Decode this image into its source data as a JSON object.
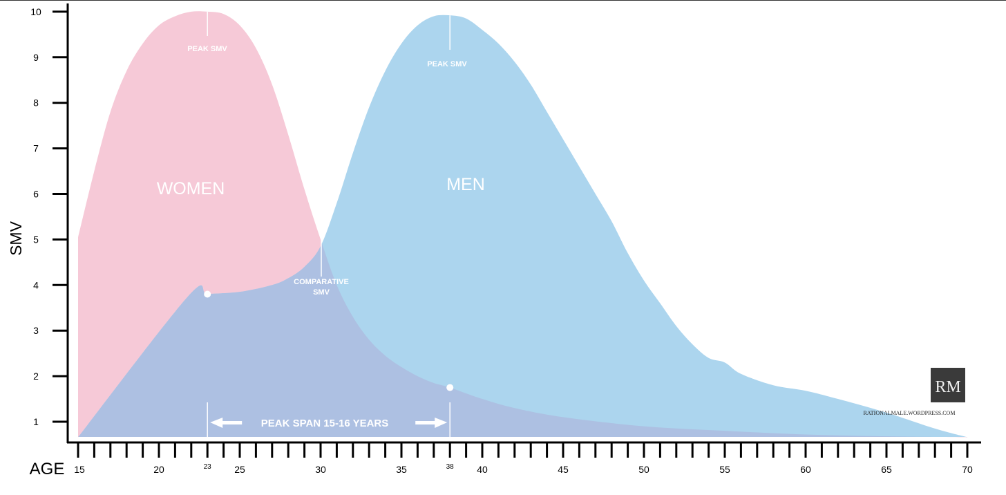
{
  "chart_data": {
    "type": "area",
    "title": "",
    "xlabel": "AGE",
    "ylabel": "SMV",
    "xlim": [
      15,
      70
    ],
    "ylim": [
      0.55,
      10
    ],
    "x_ticks": [
      15,
      20,
      25,
      30,
      35,
      40,
      45,
      50,
      55,
      60,
      65,
      70
    ],
    "x_special_ticks": [
      23,
      38
    ],
    "y_ticks": [
      1,
      2,
      3,
      4,
      5,
      6,
      7,
      8,
      9,
      10
    ],
    "series": [
      {
        "name": "WOMEN",
        "color": "#f6c9d7",
        "points": [
          [
            15,
            5.05
          ],
          [
            16,
            6.5
          ],
          [
            17,
            7.8
          ],
          [
            18,
            8.7
          ],
          [
            19,
            9.3
          ],
          [
            20,
            9.7
          ],
          [
            21,
            9.9
          ],
          [
            22,
            10
          ],
          [
            23,
            10
          ],
          [
            24,
            9.95
          ],
          [
            25,
            9.7
          ],
          [
            26,
            9.2
          ],
          [
            27,
            8.4
          ],
          [
            28,
            7.3
          ],
          [
            29,
            6.1
          ],
          [
            30,
            5.0
          ],
          [
            31,
            4.0
          ],
          [
            32,
            3.3
          ],
          [
            33,
            2.8
          ],
          [
            34,
            2.45
          ],
          [
            35,
            2.2
          ],
          [
            36,
            2.0
          ],
          [
            37,
            1.85
          ],
          [
            38,
            1.75
          ],
          [
            40,
            1.5
          ],
          [
            42,
            1.3
          ],
          [
            45,
            1.1
          ],
          [
            50,
            0.9
          ],
          [
            55,
            0.8
          ],
          [
            60,
            0.72
          ],
          [
            65,
            0.68
          ],
          [
            70,
            0.66
          ]
        ]
      },
      {
        "name": "MEN",
        "color": "#acd5ee",
        "points": [
          [
            15,
            0.66
          ],
          [
            21.8,
            3.75
          ],
          [
            23,
            3.8
          ],
          [
            25,
            3.85
          ],
          [
            27,
            4.0
          ],
          [
            28,
            4.15
          ],
          [
            29,
            4.4
          ],
          [
            30,
            4.85
          ],
          [
            31,
            5.8
          ],
          [
            32,
            6.9
          ],
          [
            33,
            7.9
          ],
          [
            34,
            8.7
          ],
          [
            35,
            9.3
          ],
          [
            36,
            9.7
          ],
          [
            37,
            9.9
          ],
          [
            38,
            9.92
          ],
          [
            39,
            9.85
          ],
          [
            40,
            9.6
          ],
          [
            41,
            9.3
          ],
          [
            42,
            8.9
          ],
          [
            43,
            8.4
          ],
          [
            44,
            7.8
          ],
          [
            45,
            7.2
          ],
          [
            46,
            6.6
          ],
          [
            47,
            6.0
          ],
          [
            48,
            5.4
          ],
          [
            49,
            4.7
          ],
          [
            50,
            4.1
          ],
          [
            51,
            3.6
          ],
          [
            52,
            3.1
          ],
          [
            53,
            2.7
          ],
          [
            54,
            2.4
          ],
          [
            55,
            2.3
          ],
          [
            56,
            2.05
          ],
          [
            58,
            1.8
          ],
          [
            60,
            1.68
          ],
          [
            62,
            1.5
          ],
          [
            65,
            1.2
          ],
          [
            68,
            0.85
          ],
          [
            70,
            0.66
          ]
        ]
      }
    ],
    "overlap_color": "#adc0e2",
    "annotations": {
      "women_peak": {
        "x": 23,
        "y": 10,
        "label": "PEAK SMV"
      },
      "men_peak": {
        "x": 38,
        "y": 9.92,
        "label": "PEAK SMV"
      },
      "comparative": {
        "x": 30,
        "y": 5,
        "label_line1": "COMPARATIVE",
        "label_line2": "SMV"
      },
      "women_point": {
        "x": 23,
        "y": 3.8
      },
      "men_point": {
        "x": 38,
        "y": 1.75
      },
      "peak_span": {
        "from": 23,
        "to": 38,
        "label": "PEAK SPAN 15-16 YEARS"
      }
    },
    "grid": false
  },
  "logo": {
    "monogram": "RM",
    "site": "RATIONALMALE.WORDPRESS.COM"
  }
}
